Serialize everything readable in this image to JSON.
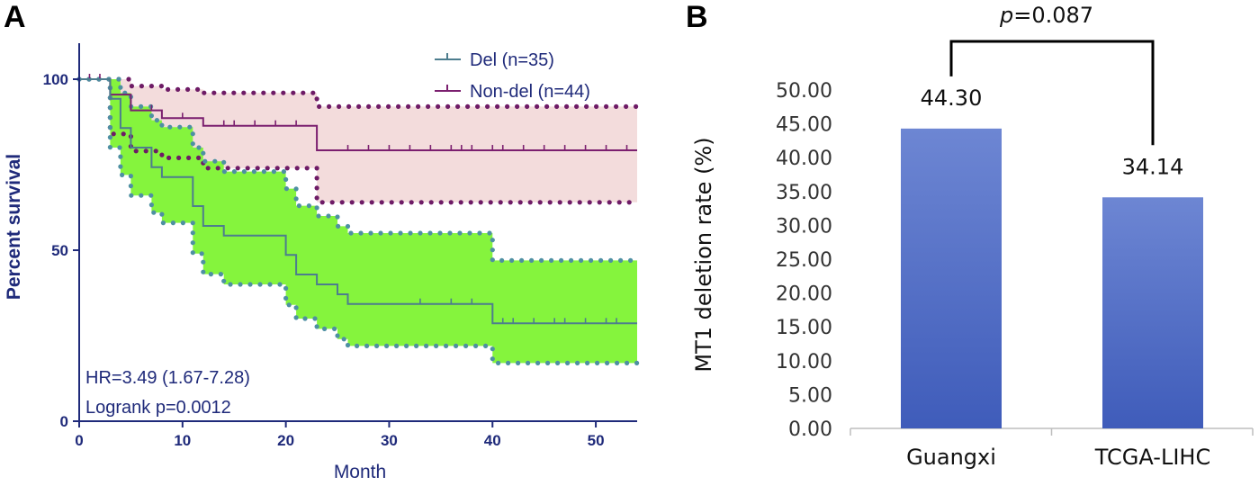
{
  "panels": {
    "a": "A",
    "b": "B"
  },
  "chart_data": [
    {
      "type": "line",
      "subtype": "kaplan-meier",
      "xlabel": "Month",
      "ylabel": "Percent survival",
      "xlim": [
        0,
        55
      ],
      "ylim": [
        0,
        105
      ],
      "xticks": [
        0,
        10,
        20,
        30,
        40,
        50
      ],
      "yticks": [
        0,
        50,
        100
      ],
      "legend_position": "top-right",
      "annotations": [
        "HR=3.49 (1.67-7.28)",
        "Logrank p=0.0012"
      ],
      "colors": {
        "del": "#4d7d8e",
        "nondel": "#7b1f6f",
        "del_ci_fill": "#85f43d",
        "nondel_ci_fill": "#f3dcdc",
        "del_ci_dot": "#4e90a2",
        "nondel_ci_dot": "#6e1b66"
      },
      "series": [
        {
          "name": "Del (n=35)",
          "x": [
            0,
            3,
            4,
            5,
            7,
            8,
            11,
            12,
            14,
            20,
            21,
            23,
            25,
            26,
            40,
            54
          ],
          "y": [
            100,
            94.3,
            85.7,
            80.0,
            74.3,
            71.4,
            62.9,
            57.1,
            54.3,
            48.6,
            42.9,
            40.0,
            37.1,
            34.3,
            28.6,
            28.6
          ],
          "censored_x": [
            33,
            36,
            38,
            41,
            42,
            44,
            46,
            47,
            49,
            51,
            52
          ],
          "ci_upper": [
            100,
            100,
            96,
            92,
            88,
            86,
            80,
            76,
            73,
            68,
            63,
            60,
            57,
            55,
            47,
            47
          ],
          "ci_lower": [
            100,
            80,
            72,
            66,
            61,
            58,
            49,
            43,
            40,
            34,
            30,
            27,
            24,
            22,
            17,
            17
          ]
        },
        {
          "name": "Non-del  (n=44)",
          "x": [
            0,
            3,
            5,
            8,
            12,
            23,
            54
          ],
          "y": [
            100,
            95.5,
            90.9,
            88.6,
            86.4,
            79.2,
            79.2
          ],
          "censored_x": [
            1,
            2,
            7,
            10,
            14,
            15,
            17,
            19,
            21,
            26,
            28,
            30,
            32,
            34,
            36,
            37,
            38,
            40,
            41,
            43,
            45,
            47,
            49,
            51,
            53
          ],
          "ci_upper": [
            100,
            100,
            98,
            97,
            96,
            92,
            92
          ],
          "ci_lower": [
            100,
            84,
            79,
            77,
            74,
            64,
            64
          ]
        }
      ]
    },
    {
      "type": "bar",
      "categories": [
        "Guangxi",
        "TCGA-LIHC"
      ],
      "values": [
        44.3,
        34.14
      ],
      "value_labels": [
        "44.30",
        "34.14"
      ],
      "ylabel": "MT1 deletion rate (%)",
      "ylim": [
        0,
        50
      ],
      "yticks": [
        "0.00",
        "5.00",
        "10.00",
        "15.00",
        "20.00",
        "25.00",
        "30.00",
        "35.00",
        "40.00",
        "45.00",
        "50.00"
      ],
      "comparison": {
        "p_label": "p",
        "p_value": "=0.087"
      },
      "colors": {
        "bar": "#4a68c3",
        "bar_light": "#6d86d3"
      }
    }
  ]
}
